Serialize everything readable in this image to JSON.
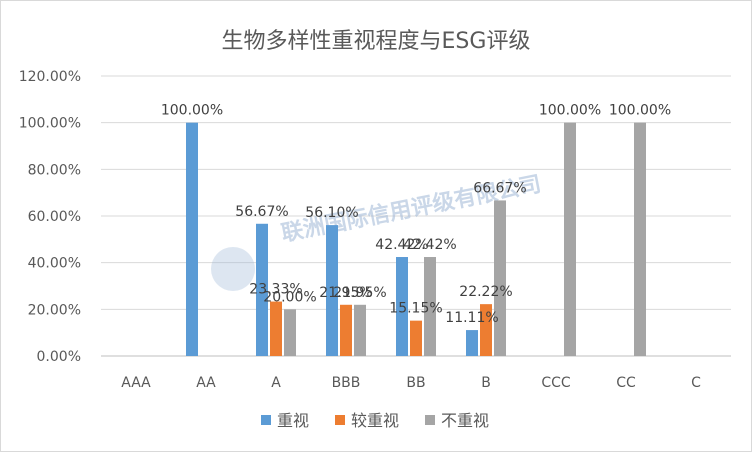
{
  "chart_data": {
    "type": "bar",
    "title": "生物多样性重视程度与ESG评级",
    "xlabel": "",
    "ylabel": "",
    "ylim": [
      0,
      120
    ],
    "yticks": [
      "0.00%",
      "20.00%",
      "40.00%",
      "60.00%",
      "80.00%",
      "100.00%",
      "120.00%"
    ],
    "categories": [
      "AAA",
      "AA",
      "A",
      "BBB",
      "BB",
      "B",
      "CCC",
      "CC",
      "C"
    ],
    "series": [
      {
        "name": "重视",
        "color": "#5b9bd5",
        "values": [
          0,
          100,
          56.67,
          56.1,
          42.42,
          11.11,
          0,
          0,
          0
        ],
        "labels": [
          "",
          "100.00%",
          "56.67%",
          "56.10%",
          "42.42%",
          "11.11%",
          "",
          "",
          ""
        ]
      },
      {
        "name": "较重视",
        "color": "#ed7d31",
        "values": [
          0,
          0,
          23.33,
          21.95,
          15.15,
          22.22,
          0,
          0,
          0
        ],
        "labels": [
          "",
          "",
          "23.33%",
          "21.95%",
          "15.15%",
          "22.22%",
          "",
          "",
          ""
        ]
      },
      {
        "name": "不重视",
        "color": "#a5a5a5",
        "values": [
          0,
          0,
          20.0,
          21.95,
          42.42,
          66.67,
          100,
          100,
          0
        ],
        "labels": [
          "",
          "",
          "20.00%",
          "21.95%",
          "42.42%",
          "66.67%",
          "100.00%",
          "100.00%",
          ""
        ]
      }
    ],
    "grid": true,
    "legend": "bottom",
    "watermark": "联洲国际信用评级有限公司"
  }
}
